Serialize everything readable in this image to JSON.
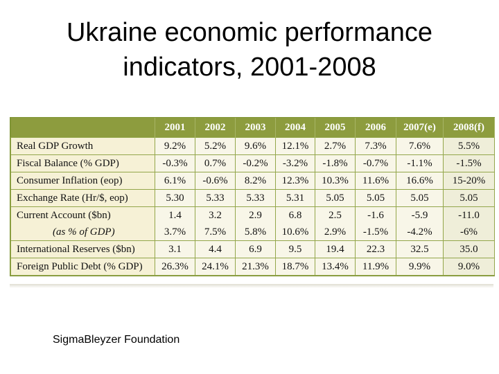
{
  "title": "Ukraine economic performance indicators, 2001-2008",
  "table": {
    "header": [
      "2001",
      "2002",
      "2003",
      "2004",
      "2005",
      "2006",
      "2007(e)",
      "2008(f)"
    ],
    "rows": [
      [
        "Real GDP Growth",
        "9.2%",
        "5.2%",
        "9.6%",
        "12.1%",
        "2.7%",
        "7.3%",
        "7.6%",
        "5.5%"
      ],
      [
        "Fiscal Balance (% GDP)",
        "-0.3%",
        "0.7%",
        "-0.2%",
        "-3.2%",
        "-1.8%",
        "-0.7%",
        "-1.1%",
        "-1.5%"
      ],
      [
        "Consumer Inflation (eop)",
        "6.1%",
        "-0.6%",
        "8.2%",
        "12.3%",
        "10.3%",
        "11.6%",
        "16.6%",
        "15-20%"
      ],
      [
        "Exchange Rate (Hr/$, eop)",
        "5.30",
        "5.33",
        "5.33",
        "5.31",
        "5.05",
        "5.05",
        "5.05",
        "5.05"
      ],
      [
        "Current Account ($bn)",
        "1.4",
        "3.2",
        "2.9",
        "6.8",
        "2.5",
        "-1.6",
        "-5.9",
        "-11.0"
      ],
      [
        "(as % of GDP)",
        "3.7%",
        "7.5%",
        "5.8%",
        "10.6%",
        "2.9%",
        "-1.5%",
        "-4.2%",
        "-6%"
      ],
      [
        "International Reserves ($bn)",
        "3.1",
        "4.4",
        "6.9",
        "9.5",
        "19.4",
        "22.3",
        "32.5",
        "35.0"
      ],
      [
        "Foreign Public Debt (% GDP)",
        "26.3%",
        "24.1%",
        "21.3%",
        "18.7%",
        "13.4%",
        "11.9%",
        "9.9%",
        "9.0%"
      ]
    ]
  },
  "footer": "SigmaBleyzer Foundation"
}
